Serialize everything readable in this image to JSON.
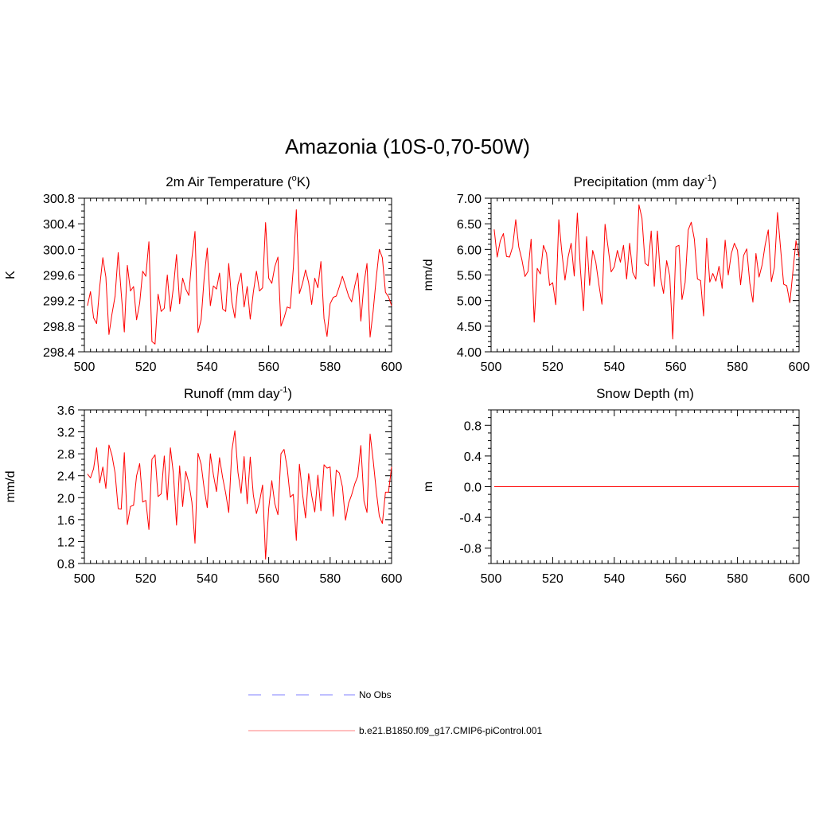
{
  "title": "Amazonia (10S-0,70-50W)",
  "chart_data": [
    {
      "type": "line",
      "title": "2m Air Temperature (",
      "title_sup": "o",
      "title_suffix": "K)",
      "ylabel": "K",
      "xlim": [
        500,
        600
      ],
      "ylim": [
        298.4,
        300.8
      ],
      "xticks": [
        500,
        520,
        540,
        560,
        580,
        600
      ],
      "xtick_labels": [
        "500",
        "520",
        "540",
        "560",
        "580",
        "600"
      ],
      "yticks": [
        298.4,
        298.8,
        299.2,
        299.6,
        300.0,
        300.4,
        300.8
      ],
      "ytick_labels": [
        "298.4",
        "298.8",
        "299.2",
        "299.6",
        "300.0",
        "300.4",
        "300.8"
      ],
      "yminor_step": 0.1,
      "series": [
        {
          "name": "b.e21.B1850.f09_g17.CMIP6-piControl.001",
          "color": "#ff0000",
          "x_start": 501,
          "values": [
            299.12,
            299.34,
            298.93,
            298.84,
            299.42,
            299.87,
            299.57,
            298.67,
            298.99,
            299.27,
            299.95,
            299.32,
            298.71,
            299.75,
            299.35,
            299.42,
            298.9,
            299.16,
            299.66,
            299.58,
            300.12,
            298.56,
            298.52,
            299.3,
            299.03,
            299.08,
            299.6,
            299.03,
            299.41,
            299.92,
            299.15,
            299.55,
            299.38,
            299.28,
            299.86,
            300.28,
            298.7,
            298.9,
            299.55,
            300.02,
            299.12,
            299.43,
            299.38,
            299.63,
            299.07,
            299.03,
            299.78,
            299.18,
            298.93,
            299.45,
            299.63,
            299.1,
            299.42,
            298.91,
            299.33,
            299.66,
            299.35,
            299.4,
            300.42,
            299.55,
            299.47,
            299.73,
            299.88,
            298.8,
            298.93,
            299.1,
            299.08,
            299.7,
            300.62,
            299.31,
            299.47,
            299.68,
            299.48,
            299.14,
            299.55,
            299.4,
            299.81,
            298.92,
            298.64,
            299.15,
            299.25,
            299.27,
            299.42,
            299.58,
            299.43,
            299.27,
            299.18,
            299.43,
            299.63,
            298.88,
            299.47,
            299.78,
            298.63,
            299.03,
            299.55,
            300.0,
            299.87,
            299.33,
            299.26,
            299.12
          ]
        }
      ]
    },
    {
      "type": "line",
      "title": "Precipitation (mm day",
      "title_sup": "-1",
      "title_suffix": ")",
      "ylabel": "mm/d",
      "xlim": [
        500,
        600
      ],
      "ylim": [
        4.0,
        7.0
      ],
      "xticks": [
        500,
        520,
        540,
        560,
        580,
        600
      ],
      "xtick_labels": [
        "500",
        "520",
        "540",
        "560",
        "580",
        "600"
      ],
      "yticks": [
        4.0,
        4.5,
        5.0,
        5.5,
        6.0,
        6.5,
        7.0
      ],
      "ytick_labels": [
        "4.00",
        "4.50",
        "5.00",
        "5.50",
        "6.00",
        "6.50",
        "7.00"
      ],
      "yminor_step": 0.1,
      "series": [
        {
          "name": "b.e21.B1850.f09_g17.CMIP6-piControl.001",
          "color": "#ff0000",
          "x_start": 501,
          "values": [
            6.39,
            5.85,
            6.17,
            6.31,
            5.86,
            5.85,
            6.05,
            6.58,
            6.05,
            5.8,
            5.47,
            5.57,
            6.2,
            4.58,
            5.63,
            5.52,
            6.08,
            5.92,
            5.3,
            5.35,
            4.92,
            6.58,
            5.93,
            5.4,
            5.85,
            6.12,
            5.48,
            6.71,
            5.62,
            4.8,
            6.25,
            5.3,
            5.98,
            5.75,
            5.31,
            4.93,
            6.49,
            6.03,
            5.56,
            5.66,
            5.98,
            5.75,
            6.08,
            5.42,
            6.12,
            5.55,
            5.42,
            6.87,
            6.61,
            5.73,
            5.68,
            6.36,
            5.28,
            6.36,
            5.45,
            5.14,
            5.78,
            5.48,
            4.25,
            6.05,
            6.08,
            5.02,
            5.35,
            6.38,
            6.53,
            6.2,
            5.42,
            5.39,
            4.7,
            6.22,
            5.36,
            5.53,
            5.38,
            5.67,
            5.24,
            6.18,
            5.5,
            5.92,
            6.12,
            5.98,
            5.31,
            5.88,
            6.01,
            5.34,
            4.97,
            5.92,
            5.46,
            5.7,
            6.09,
            6.38,
            5.37,
            5.65,
            6.72,
            6.01,
            5.32,
            5.29,
            4.96,
            5.58,
            6.17,
            5.85
          ]
        }
      ]
    },
    {
      "type": "line",
      "title": "Runoff (mm day",
      "title_sup": "-1",
      "title_suffix": ")",
      "ylabel": "mm/d",
      "xlim": [
        500,
        600
      ],
      "ylim": [
        0.8,
        3.6
      ],
      "xticks": [
        500,
        520,
        540,
        560,
        580,
        600
      ],
      "xtick_labels": [
        "500",
        "520",
        "540",
        "560",
        "580",
        "600"
      ],
      "yticks": [
        0.8,
        1.2,
        1.6,
        2.0,
        2.4,
        2.8,
        3.2,
        3.6
      ],
      "ytick_labels": [
        "0.8",
        "1.2",
        "1.6",
        "2.0",
        "2.4",
        "2.8",
        "3.2",
        "3.6"
      ],
      "yminor_step": 0.1,
      "series": [
        {
          "name": "b.e21.B1850.f09_g17.CMIP6-piControl.001",
          "color": "#ff0000",
          "x_start": 501,
          "values": [
            2.43,
            2.36,
            2.53,
            2.91,
            2.27,
            2.56,
            2.17,
            2.96,
            2.77,
            2.45,
            1.8,
            1.79,
            2.82,
            1.51,
            1.84,
            1.86,
            2.4,
            2.62,
            1.92,
            1.95,
            1.42,
            2.7,
            2.78,
            2.02,
            2.07,
            2.76,
            1.96,
            2.91,
            2.43,
            1.5,
            2.58,
            1.84,
            2.48,
            2.27,
            1.92,
            1.17,
            2.81,
            2.61,
            2.17,
            1.82,
            2.8,
            2.42,
            2.11,
            2.73,
            2.37,
            2.08,
            1.73,
            2.86,
            3.22,
            2.46,
            2.08,
            2.75,
            1.89,
            2.74,
            2.05,
            1.71,
            1.92,
            2.23,
            0.88,
            1.8,
            2.31,
            1.89,
            1.69,
            2.8,
            2.88,
            2.55,
            2.01,
            2.06,
            1.22,
            2.61,
            2.07,
            1.63,
            2.44,
            2.04,
            1.74,
            2.41,
            1.76,
            2.6,
            2.54,
            2.56,
            1.66,
            2.5,
            2.45,
            2.2,
            1.59,
            1.9,
            2.05,
            2.25,
            2.39,
            2.95,
            1.94,
            1.73,
            3.16,
            2.69,
            2.13,
            1.66,
            1.53,
            2.1,
            2.1,
            2.56
          ]
        }
      ]
    },
    {
      "type": "line",
      "title": "Snow Depth (m)",
      "title_sup": "",
      "title_suffix": "",
      "ylabel": "m",
      "xlim": [
        500,
        600
      ],
      "ylim": [
        -1.0,
        1.0
      ],
      "xticks": [
        500,
        520,
        540,
        560,
        580,
        600
      ],
      "xtick_labels": [
        "500",
        "520",
        "540",
        "560",
        "580",
        "600"
      ],
      "yticks": [
        -0.8,
        -0.4,
        0.0,
        0.4,
        0.8
      ],
      "ytick_labels": [
        "-0.8",
        "-0.4",
        "0.0",
        "0.4",
        "0.8"
      ],
      "yminor_step": 0.1,
      "series": [
        {
          "name": "b.e21.B1850.f09_g17.CMIP6-piControl.001",
          "color": "#ff0000",
          "x_start": 501,
          "constant": 0.0,
          "count": 100
        }
      ]
    }
  ],
  "legend": {
    "items": [
      {
        "label": "No Obs",
        "color": "#9999ff",
        "style": "dashed"
      },
      {
        "label": "b.e21.B1850.f09_g17.CMIP6-piControl.001",
        "color": "#ff9999",
        "style": "solid"
      }
    ]
  }
}
